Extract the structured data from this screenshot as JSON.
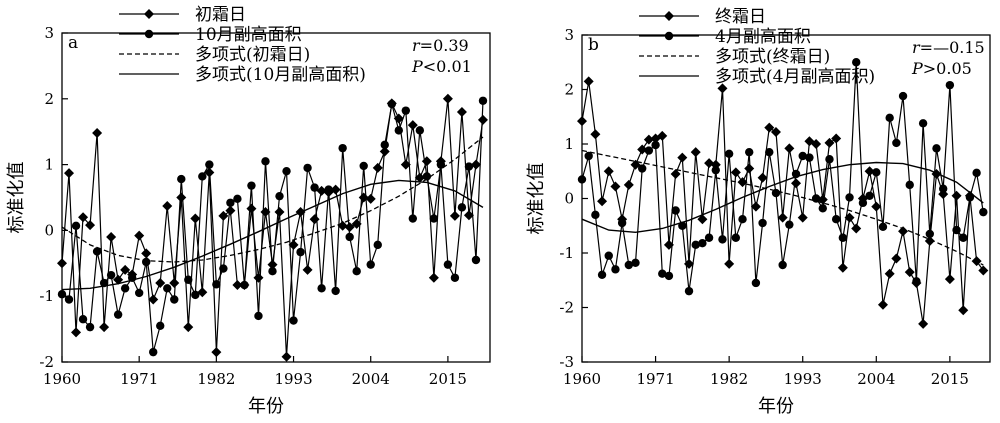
{
  "chart_data": [
    {
      "panel": "a",
      "type": "line",
      "xlabel": "年份",
      "ylabel": "标准化值",
      "xlim": [
        1960,
        2021
      ],
      "ylim": [
        -2,
        3
      ],
      "xticks": [
        1960,
        1971,
        1982,
        1993,
        2004,
        2015
      ],
      "yticks": [
        -2,
        -1,
        0,
        1,
        2,
        3
      ],
      "legend_position": "top-left",
      "stats": {
        "r": "0.39",
        "p": "<0.01"
      },
      "series": [
        {
          "name": "初霜日",
          "marker": "diamond",
          "x": [
            1960,
            1961,
            1962,
            1963,
            1964,
            1965,
            1966,
            1967,
            1968,
            1969,
            1970,
            1971,
            1972,
            1973,
            1974,
            1975,
            1976,
            1977,
            1978,
            1979,
            1980,
            1981,
            1982,
            1983,
            1984,
            1985,
            1986,
            1987,
            1988,
            1989,
            1990,
            1991,
            1992,
            1993,
            1994,
            1995,
            1996,
            1997,
            1998,
            1999,
            2000,
            2001,
            2002,
            2003,
            2004,
            2005,
            2006,
            2007,
            2008,
            2009,
            2010,
            2011,
            2012,
            2013,
            2014,
            2015,
            2016,
            2017,
            2018,
            2019,
            2020
          ],
          "values": [
            -0.5,
            0.87,
            -1.55,
            0.2,
            0.08,
            1.48,
            -1.47,
            -0.1,
            -0.75,
            -0.6,
            -0.67,
            -0.08,
            -0.35,
            -1.05,
            -0.8,
            0.37,
            -0.8,
            0.5,
            -1.47,
            0.18,
            -0.94,
            0.88,
            -1.85,
            0.22,
            0.3,
            -0.83,
            -0.83,
            0.33,
            -0.72,
            0.28,
            -0.52,
            0.28,
            -1.92,
            -0.22,
            0.28,
            -0.6,
            0.17,
            0.6,
            0.58,
            0.62,
            0.07,
            0.05,
            0.1,
            0.5,
            0.48,
            0.95,
            1.2,
            1.93,
            1.7,
            1.0,
            1.6,
            0.8,
            1.05,
            -0.72,
            1.05,
            2.0,
            0.22,
            1.8,
            0.23,
            1.0,
            1.68
          ]
        },
        {
          "name": "10月副高面积",
          "marker": "circle",
          "x": [
            1960,
            1961,
            1962,
            1963,
            1964,
            1965,
            1966,
            1967,
            1968,
            1969,
            1970,
            1971,
            1972,
            1973,
            1974,
            1975,
            1976,
            1977,
            1978,
            1979,
            1980,
            1981,
            1982,
            1983,
            1984,
            1985,
            1986,
            1987,
            1988,
            1989,
            1990,
            1991,
            1992,
            1993,
            1994,
            1995,
            1996,
            1997,
            1998,
            1999,
            2000,
            2001,
            2002,
            2003,
            2004,
            2005,
            2006,
            2007,
            2008,
            2009,
            2010,
            2011,
            2012,
            2013,
            2014,
            2015,
            2016,
            2017,
            2018,
            2019,
            2020
          ],
          "values": [
            -0.97,
            -1.05,
            0.07,
            -1.35,
            -1.47,
            -0.32,
            -0.8,
            -0.68,
            -1.28,
            -0.88,
            -0.72,
            -0.95,
            -0.48,
            -1.85,
            -1.45,
            -0.88,
            -1.05,
            0.78,
            -0.75,
            -0.98,
            0.82,
            1.0,
            -0.82,
            -0.58,
            0.42,
            0.48,
            -0.83,
            0.68,
            -1.3,
            1.05,
            -0.62,
            0.52,
            0.9,
            -1.37,
            -0.33,
            0.95,
            0.65,
            -0.88,
            0.62,
            -0.92,
            1.25,
            -0.1,
            -0.62,
            0.98,
            -0.52,
            -0.22,
            1.3,
            1.92,
            1.52,
            1.82,
            0.18,
            1.52,
            0.82,
            0.18,
            1.0,
            -0.52,
            -0.72,
            0.35,
            0.97,
            -0.45,
            1.97
          ]
        },
        {
          "name": "多项式(初霜日)",
          "style": "dashed",
          "x": [
            1960,
            1964,
            1968,
            1972,
            1976,
            1980,
            1984,
            1988,
            1992,
            1996,
            2000,
            2004,
            2008,
            2012,
            2016,
            2020
          ],
          "values": [
            0.05,
            -0.22,
            -0.38,
            -0.46,
            -0.48,
            -0.45,
            -0.38,
            -0.29,
            -0.18,
            -0.04,
            0.11,
            0.3,
            0.52,
            0.78,
            1.08,
            1.42
          ]
        },
        {
          "name": "多项式(10月副高面积)",
          "style": "solid",
          "x": [
            1960,
            1964,
            1968,
            1972,
            1976,
            1980,
            1984,
            1988,
            1992,
            1996,
            2000,
            2004,
            2008,
            2012,
            2016,
            2020
          ],
          "values": [
            -0.9,
            -0.88,
            -0.81,
            -0.7,
            -0.56,
            -0.39,
            -0.21,
            -0.02,
            0.18,
            0.37,
            0.56,
            0.7,
            0.76,
            0.73,
            0.6,
            0.35
          ]
        }
      ]
    },
    {
      "panel": "b",
      "type": "line",
      "xlabel": "年份",
      "ylabel": "标准化值",
      "xlim": [
        1960,
        2021
      ],
      "ylim": [
        -3,
        3
      ],
      "xticks": [
        1960,
        1971,
        1982,
        1993,
        2004,
        2015
      ],
      "yticks": [
        -3,
        -2,
        -1,
        0,
        1,
        2,
        3
      ],
      "legend_position": "top-left",
      "stats": {
        "r": "—0.15",
        "p": ">0.05"
      },
      "series": [
        {
          "name": "终霜日",
          "marker": "diamond",
          "x": [
            1960,
            1961,
            1962,
            1963,
            1964,
            1965,
            1966,
            1967,
            1968,
            1969,
            1970,
            1971,
            1972,
            1973,
            1974,
            1975,
            1976,
            1977,
            1978,
            1979,
            1980,
            1981,
            1982,
            1983,
            1984,
            1985,
            1986,
            1987,
            1988,
            1989,
            1990,
            1991,
            1992,
            1993,
            1994,
            1995,
            1996,
            1997,
            1998,
            1999,
            2000,
            2001,
            2002,
            2003,
            2004,
            2005,
            2006,
            2007,
            2008,
            2009,
            2010,
            2011,
            2012,
            2013,
            2014,
            2015,
            2016,
            2017,
            2018,
            2019,
            2020
          ],
          "values": [
            1.42,
            2.15,
            1.18,
            -0.05,
            0.5,
            0.22,
            -0.38,
            0.25,
            0.62,
            0.9,
            1.08,
            1.1,
            1.15,
            -0.85,
            0.45,
            0.75,
            -1.2,
            0.85,
            -0.38,
            0.65,
            0.62,
            2.02,
            -1.2,
            0.48,
            0.3,
            0.55,
            -0.15,
            0.38,
            1.3,
            1.22,
            -0.35,
            0.92,
            0.28,
            -0.35,
            1.05,
            1.0,
            -0.02,
            1.02,
            1.1,
            -1.27,
            -0.35,
            -0.55,
            0.0,
            0.5,
            -0.15,
            -1.95,
            -1.38,
            -1.1,
            -0.6,
            -1.35,
            -1.55,
            -2.3,
            -0.78,
            0.45,
            0.08,
            -1.48,
            0.05,
            -2.05,
            0.05,
            -1.15,
            -1.32
          ]
        },
        {
          "name": "4月副高面积",
          "marker": "circle",
          "x": [
            1960,
            1961,
            1962,
            1963,
            1964,
            1965,
            1966,
            1967,
            1968,
            1969,
            1970,
            1971,
            1972,
            1973,
            1974,
            1975,
            1976,
            1977,
            1978,
            1979,
            1980,
            1981,
            1982,
            1983,
            1984,
            1985,
            1986,
            1987,
            1988,
            1989,
            1990,
            1991,
            1992,
            1993,
            1994,
            1995,
            1996,
            1997,
            1998,
            1999,
            2000,
            2001,
            2002,
            2003,
            2004,
            2005,
            2006,
            2007,
            2008,
            2009,
            2010,
            2011,
            2012,
            2013,
            2014,
            2015,
            2016,
            2017,
            2018,
            2019,
            2020
          ],
          "values": [
            0.35,
            0.78,
            -0.3,
            -1.4,
            -1.05,
            -1.3,
            -0.45,
            -1.22,
            -1.18,
            0.55,
            0.88,
            0.98,
            -1.38,
            -1.42,
            -0.22,
            -0.5,
            -1.7,
            -0.85,
            -0.82,
            -0.72,
            0.52,
            -0.75,
            0.82,
            -0.72,
            -0.38,
            0.85,
            -1.55,
            -0.45,
            0.85,
            0.1,
            -1.22,
            -0.48,
            0.45,
            0.78,
            0.75,
            0.0,
            -0.18,
            0.72,
            -0.38,
            -0.72,
            0.02,
            2.5,
            -0.08,
            0.05,
            0.48,
            -0.52,
            1.48,
            1.02,
            1.88,
            0.25,
            -1.52,
            1.38,
            -0.65,
            0.92,
            0.18,
            2.08,
            -0.58,
            -0.72,
            0.02,
            0.47,
            -0.25
          ]
        },
        {
          "name": "多项式(终霜日)",
          "style": "dashed",
          "x": [
            1960,
            1964,
            1968,
            1972,
            1976,
            1980,
            1984,
            1988,
            1992,
            1996,
            2000,
            2004,
            2008,
            2012,
            2016,
            2020
          ],
          "values": [
            0.88,
            0.78,
            0.68,
            0.58,
            0.48,
            0.38,
            0.28,
            0.17,
            0.05,
            -0.08,
            -0.22,
            -0.38,
            -0.55,
            -0.75,
            -0.97,
            -1.22
          ]
        },
        {
          "name": "多项式(4月副高面积)",
          "style": "solid",
          "x": [
            1960,
            1964,
            1968,
            1972,
            1976,
            1980,
            1984,
            1988,
            1992,
            1996,
            2000,
            2004,
            2008,
            2012,
            2016,
            2020
          ],
          "values": [
            -0.38,
            -0.58,
            -0.62,
            -0.55,
            -0.4,
            -0.2,
            0.02,
            0.22,
            0.4,
            0.53,
            0.62,
            0.66,
            0.64,
            0.52,
            0.3,
            -0.08
          ]
        }
      ]
    }
  ]
}
